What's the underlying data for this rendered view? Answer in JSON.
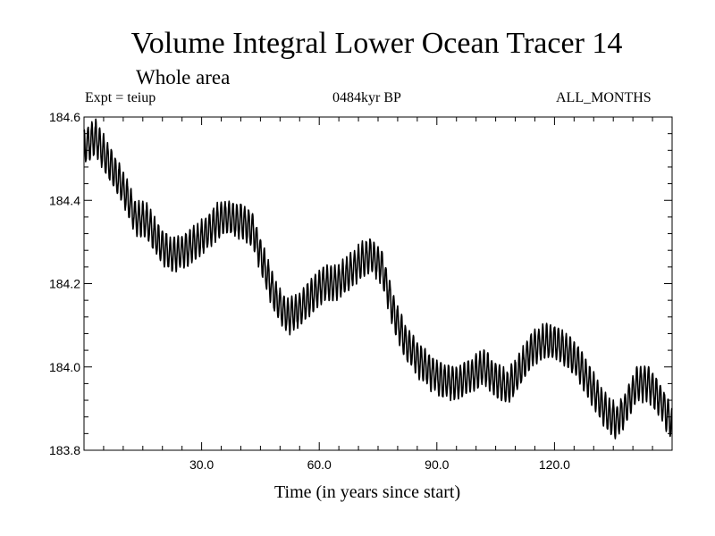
{
  "chart_data": {
    "type": "line",
    "title": "Volume Integral Lower Ocean Tracer 14",
    "subtitle": "Whole area",
    "experiment_label": "Expt = teiup",
    "period_label": "0484kyr BP",
    "months_label": "ALL_MONTHS",
    "xlabel": "Time (in years since start)",
    "ylabel": "",
    "xlim": [
      0,
      150
    ],
    "ylim": [
      183.8,
      184.6
    ],
    "x_ticks": [
      30,
      60,
      90,
      120
    ],
    "x_tick_labels": [
      "30.0",
      "60.0",
      "90.0",
      "120.0"
    ],
    "y_ticks": [
      183.8,
      184.0,
      184.2,
      184.4,
      184.6
    ],
    "y_tick_labels": [
      "183.8",
      "184.0",
      "184.2",
      "184.4",
      "184.6"
    ],
    "grid": false,
    "line_color": "#000000",
    "series": [
      {
        "name": "Lower Ocean Tracer 14",
        "annual_cycle_amplitude": 0.04,
        "trend_x": [
          0,
          3,
          7,
          10,
          13,
          16,
          19,
          22,
          26,
          30,
          34,
          37,
          40,
          43,
          46,
          49,
          52,
          55,
          58,
          61,
          64,
          67,
          70,
          73,
          76,
          79,
          82,
          85,
          88,
          91,
          95,
          99,
          102,
          105,
          108,
          111,
          114,
          117,
          120,
          123,
          126,
          129,
          132,
          134,
          136,
          138,
          141,
          144,
          147,
          150
        ],
        "trend_y": [
          184.53,
          184.55,
          184.48,
          184.43,
          184.36,
          184.35,
          184.3,
          184.27,
          184.28,
          184.31,
          184.35,
          184.36,
          184.35,
          184.33,
          184.24,
          184.16,
          184.12,
          184.14,
          184.17,
          184.2,
          184.2,
          184.22,
          184.25,
          184.27,
          184.24,
          184.13,
          184.06,
          184.02,
          183.99,
          183.97,
          183.96,
          183.98,
          184.0,
          183.97,
          183.95,
          183.99,
          184.04,
          184.06,
          184.06,
          184.04,
          184.01,
          183.96,
          183.91,
          183.88,
          183.87,
          183.9,
          183.96,
          183.96,
          183.92,
          183.86
        ]
      }
    ]
  }
}
